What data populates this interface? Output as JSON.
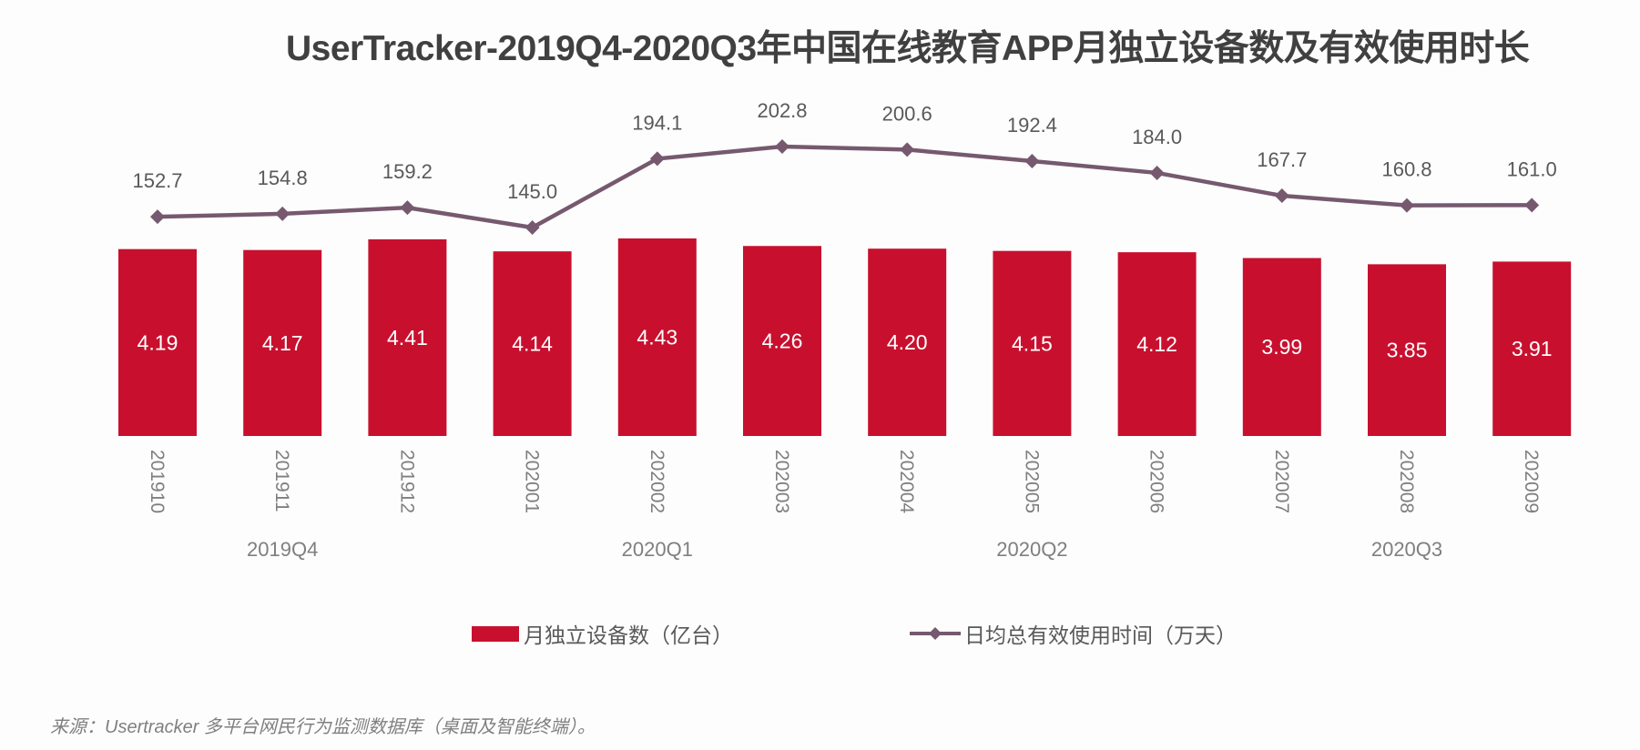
{
  "chart_data": {
    "type": "bar+line",
    "title": "UserTracker-2019Q4-2020Q3年中国在线教育APP月独立设备数及有效使用时长",
    "categories": [
      "201910",
      "201911",
      "201912",
      "202001",
      "202002",
      "202003",
      "202004",
      "202005",
      "202006",
      "202007",
      "202008",
      "202009"
    ],
    "groups": [
      {
        "label": "2019Q4",
        "months": [
          "201910",
          "201911",
          "201912"
        ]
      },
      {
        "label": "2020Q1",
        "months": [
          "202001",
          "202002",
          "202003"
        ]
      },
      {
        "label": "2020Q2",
        "months": [
          "202004",
          "202005",
          "202006"
        ]
      },
      {
        "label": "2020Q3",
        "months": [
          "202007",
          "202008",
          "202009"
        ]
      }
    ],
    "series": [
      {
        "name": "月独立设备数（亿台）",
        "type": "bar",
        "color": "#c8102e",
        "values": [
          4.19,
          4.17,
          4.41,
          4.14,
          4.43,
          4.26,
          4.2,
          4.15,
          4.12,
          3.99,
          3.85,
          3.91
        ],
        "labels": [
          "4.19",
          "4.17",
          "4.41",
          "4.14",
          "4.43",
          "4.26",
          "4.20",
          "4.15",
          "4.12",
          "3.99",
          "3.85",
          "3.91"
        ]
      },
      {
        "name": "日均总有效使用时间（万天）",
        "type": "line",
        "color": "#76596f",
        "marker": "diamond",
        "values": [
          152.7,
          154.8,
          159.2,
          145.0,
          194.1,
          202.8,
          200.6,
          192.4,
          184.0,
          167.7,
          160.8,
          161.0
        ],
        "labels": [
          "152.7",
          "154.8",
          "159.2",
          "145.0",
          "194.1",
          "202.8",
          "200.6",
          "192.4",
          "184.0",
          "167.7",
          "160.8",
          "161.0"
        ]
      }
    ],
    "legend_position": "bottom",
    "grid": false,
    "axes_visible": false
  },
  "source": "来源：Usertracker 多平台网民行为监测数据库（桌面及智能终端）。"
}
